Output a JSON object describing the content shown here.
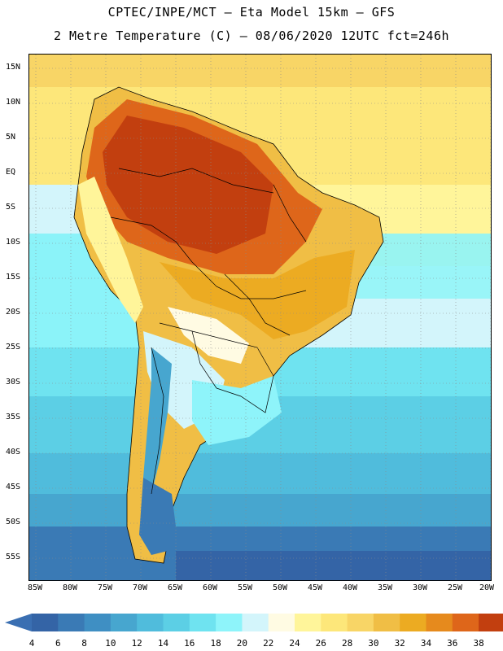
{
  "header": {
    "title_line1": "CPTEC/INPE/MCT –  Eta Model 15km – GFS",
    "title_line2": "2 Metre Temperature (C) – 08/06/2020 12UTC fct=246h"
  },
  "axes": {
    "lat_labels": [
      "15N",
      "10N",
      "5N",
      "EQ",
      "5S",
      "10S",
      "15S",
      "20S",
      "25S",
      "30S",
      "35S",
      "40S",
      "45S",
      "50S",
      "55S"
    ],
    "lon_labels": [
      "85W",
      "80W",
      "75W",
      "70W",
      "65W",
      "60W",
      "55W",
      "50W",
      "45W",
      "40W",
      "35W",
      "30W",
      "25W",
      "20W"
    ]
  },
  "colorbar": {
    "ticks": [
      "4",
      "6",
      "8",
      "10",
      "12",
      "14",
      "16",
      "18",
      "20",
      "22",
      "24",
      "26",
      "28",
      "30",
      "32",
      "34",
      "36",
      "38"
    ],
    "colors": [
      "#3464a6",
      "#3a7ab5",
      "#3f8fc3",
      "#47a6cf",
      "#50bcdc",
      "#5ccfe5",
      "#6fe3f0",
      "#8ef4fa",
      "#d3f5fb",
      "#fffbe3",
      "#fff59a",
      "#fde77a",
      "#f8d566",
      "#f0be45",
      "#ecab22",
      "#e68a1d",
      "#de661a",
      "#c23f0f"
    ],
    "under_color": "#3a6fb2",
    "over_color": "#b8360b"
  }
}
